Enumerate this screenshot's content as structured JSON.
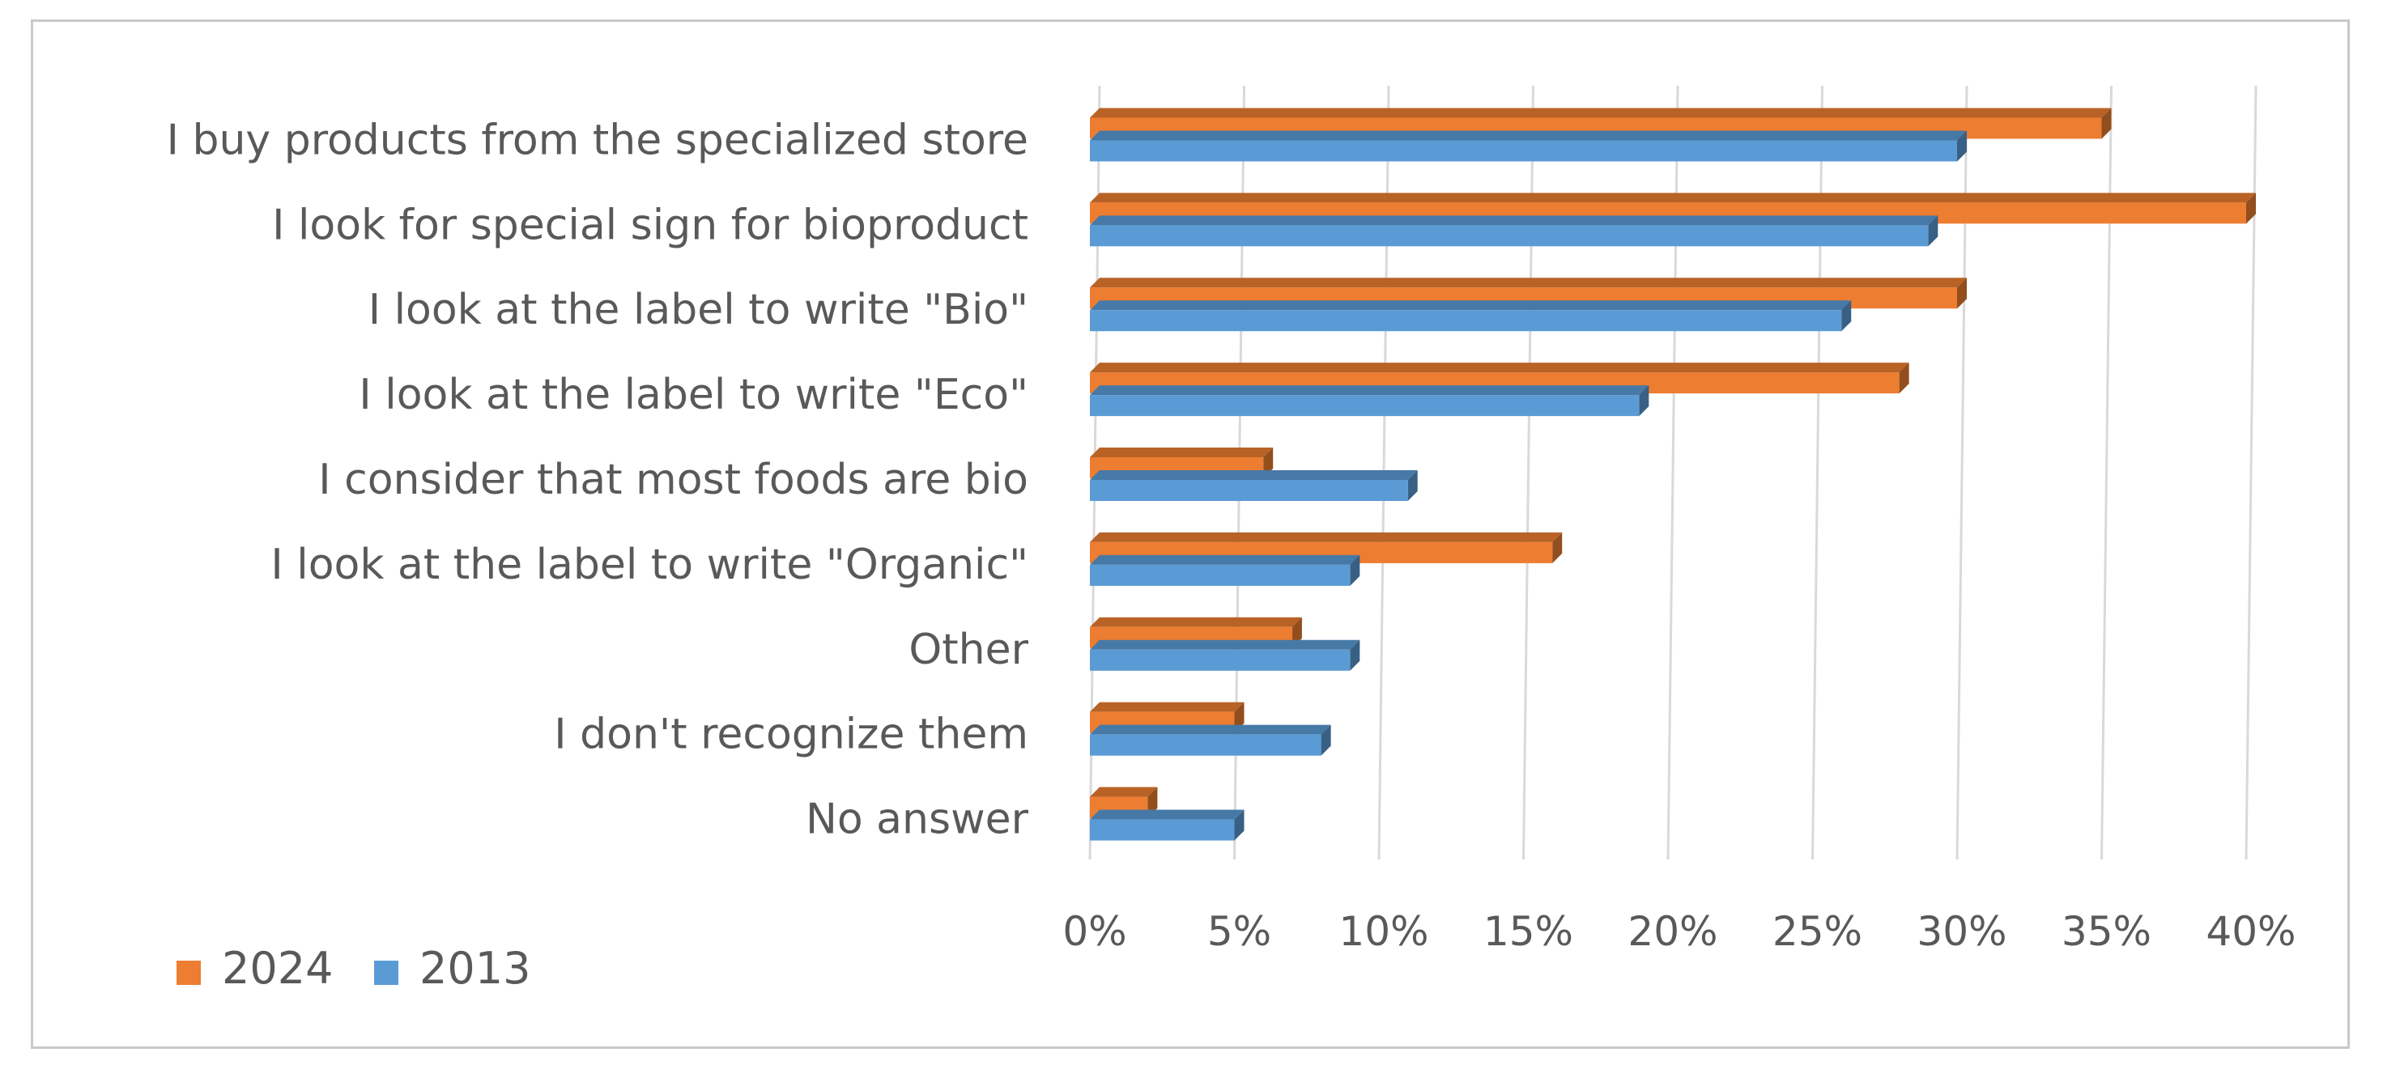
{
  "chart_data": {
    "type": "bar",
    "orientation": "horizontal",
    "categories": [
      "I buy products from the specialized store",
      "I look for special sign for bioproduct",
      "I look at the label to write \"Bio\"",
      "I look at the label to write \"Eco\"",
      "I consider that most foods are bio",
      "I look at the label to write \"Organic\"",
      "Other",
      "I don't recognize them",
      "No answer"
    ],
    "series": [
      {
        "name": "2024",
        "color": "#ed7d31",
        "values": [
          35,
          40,
          30,
          28,
          6,
          16,
          7,
          5,
          2
        ]
      },
      {
        "name": "2013",
        "color": "#5b9bd5",
        "values": [
          30,
          29,
          26,
          19,
          11,
          9,
          9,
          8,
          5
        ]
      }
    ],
    "xlim": [
      0,
      40
    ],
    "xticks": [
      0,
      5,
      10,
      15,
      20,
      25,
      30,
      35,
      40
    ],
    "xtick_labels": [
      "0%",
      "5%",
      "10%",
      "15%",
      "20%",
      "25%",
      "30%",
      "35%",
      "40%"
    ],
    "title": "",
    "xlabel": "",
    "ylabel": "",
    "legend": {
      "position": "bottom-left",
      "entries": [
        "2024",
        "2013"
      ]
    },
    "grid": true
  }
}
